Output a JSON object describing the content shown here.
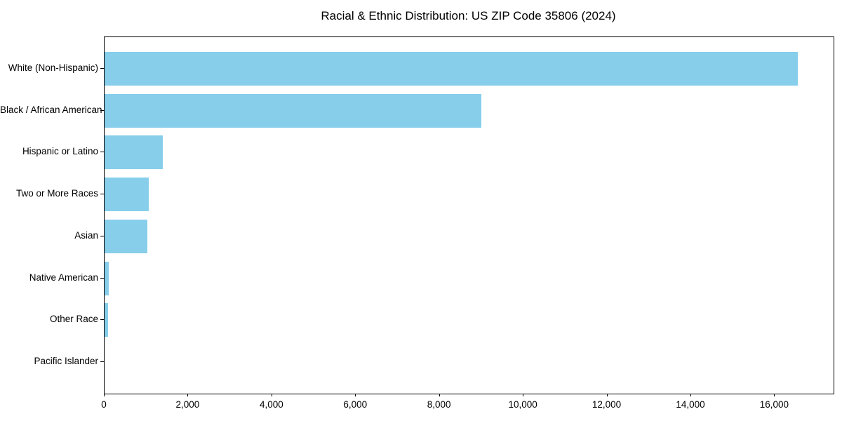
{
  "chart_data": {
    "type": "bar",
    "orientation": "horizontal",
    "title": "Racial & Ethnic Distribution: US ZIP Code 35806 (2024)",
    "categories": [
      "White (Non-Hispanic)",
      "Black / African American",
      "Hispanic or Latino",
      "Two or More Races",
      "Asian",
      "Native American",
      "Other Race",
      "Pacific Islander"
    ],
    "values": [
      16550,
      9000,
      1390,
      1050,
      1020,
      95,
      90,
      0
    ],
    "xlabel": "",
    "ylabel": "",
    "xlim": [
      0,
      17400
    ],
    "x_ticks": [
      0,
      2000,
      4000,
      6000,
      8000,
      10000,
      12000,
      14000,
      16000
    ],
    "x_tick_labels": [
      "0",
      "2,000",
      "4,000",
      "6,000",
      "8,000",
      "10,000",
      "12,000",
      "14,000",
      "16,000"
    ],
    "bar_color": "#87CEEB",
    "axis_color": "#000000",
    "text_color": "#000000",
    "background": "#ffffff",
    "grid": false,
    "legend": "none",
    "bar_height_fraction": 0.8,
    "sort_order": "descending"
  }
}
